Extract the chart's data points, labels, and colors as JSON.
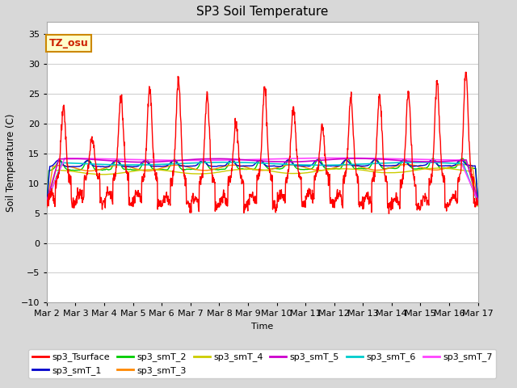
{
  "title": "SP3 Soil Temperature",
  "ylabel": "Soil Temperature (C)",
  "xlabel": "Time",
  "ylim": [
    -10,
    37
  ],
  "yticks": [
    -10,
    -5,
    0,
    5,
    10,
    15,
    20,
    25,
    30,
    35
  ],
  "date_labels": [
    "Mar 2",
    "Mar 3",
    "Mar 4",
    "Mar 5",
    "Mar 6",
    "Mar 7",
    "Mar 8",
    "Mar 9",
    "Mar 10",
    "Mar 11",
    "Mar 12",
    "Mar 13",
    "Mar 14",
    "Mar 15",
    "Mar 16",
    "Mar 17"
  ],
  "fig_bg": "#d8d8d8",
  "plot_bg": "#ffffff",
  "annotation_text": "TZ_osu",
  "annotation_color": "#cc2200",
  "annotation_bg": "#ffffcc",
  "annotation_border": "#cc8800",
  "series_colors": {
    "sp3_Tsurface": "#ff0000",
    "sp3_smT_1": "#0000cc",
    "sp3_smT_2": "#00cc00",
    "sp3_smT_3": "#ff8800",
    "sp3_smT_4": "#cccc00",
    "sp3_smT_5": "#cc00cc",
    "sp3_smT_6": "#00cccc",
    "sp3_smT_7": "#ff44ff"
  }
}
